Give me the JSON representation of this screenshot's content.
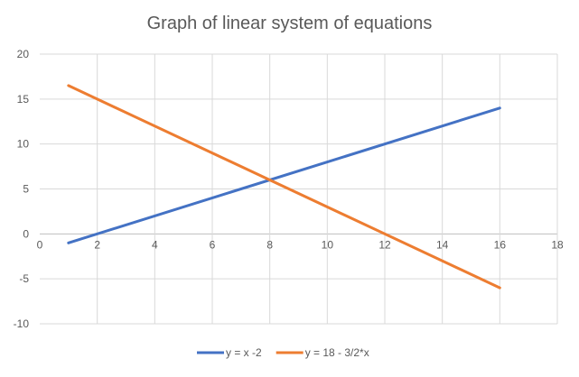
{
  "chart_data": {
    "type": "line",
    "title": "Graph of linear system of equations",
    "xlabel": "",
    "ylabel": "",
    "xlim": [
      0,
      18
    ],
    "ylim": [
      -10,
      20
    ],
    "x_ticks": [
      0,
      2,
      4,
      6,
      8,
      10,
      12,
      14,
      16,
      18
    ],
    "y_ticks": [
      -10,
      -5,
      0,
      5,
      10,
      15,
      20
    ],
    "grid": true,
    "legend_position": "bottom",
    "series": [
      {
        "name": "y = x -2",
        "color": "#4472C4",
        "points": [
          [
            1,
            -1
          ],
          [
            16,
            14
          ]
        ]
      },
      {
        "name": "y = 18 - 3/2*x",
        "color": "#ED7D31",
        "points": [
          [
            1,
            16.5
          ],
          [
            16,
            -6
          ]
        ]
      }
    ]
  }
}
